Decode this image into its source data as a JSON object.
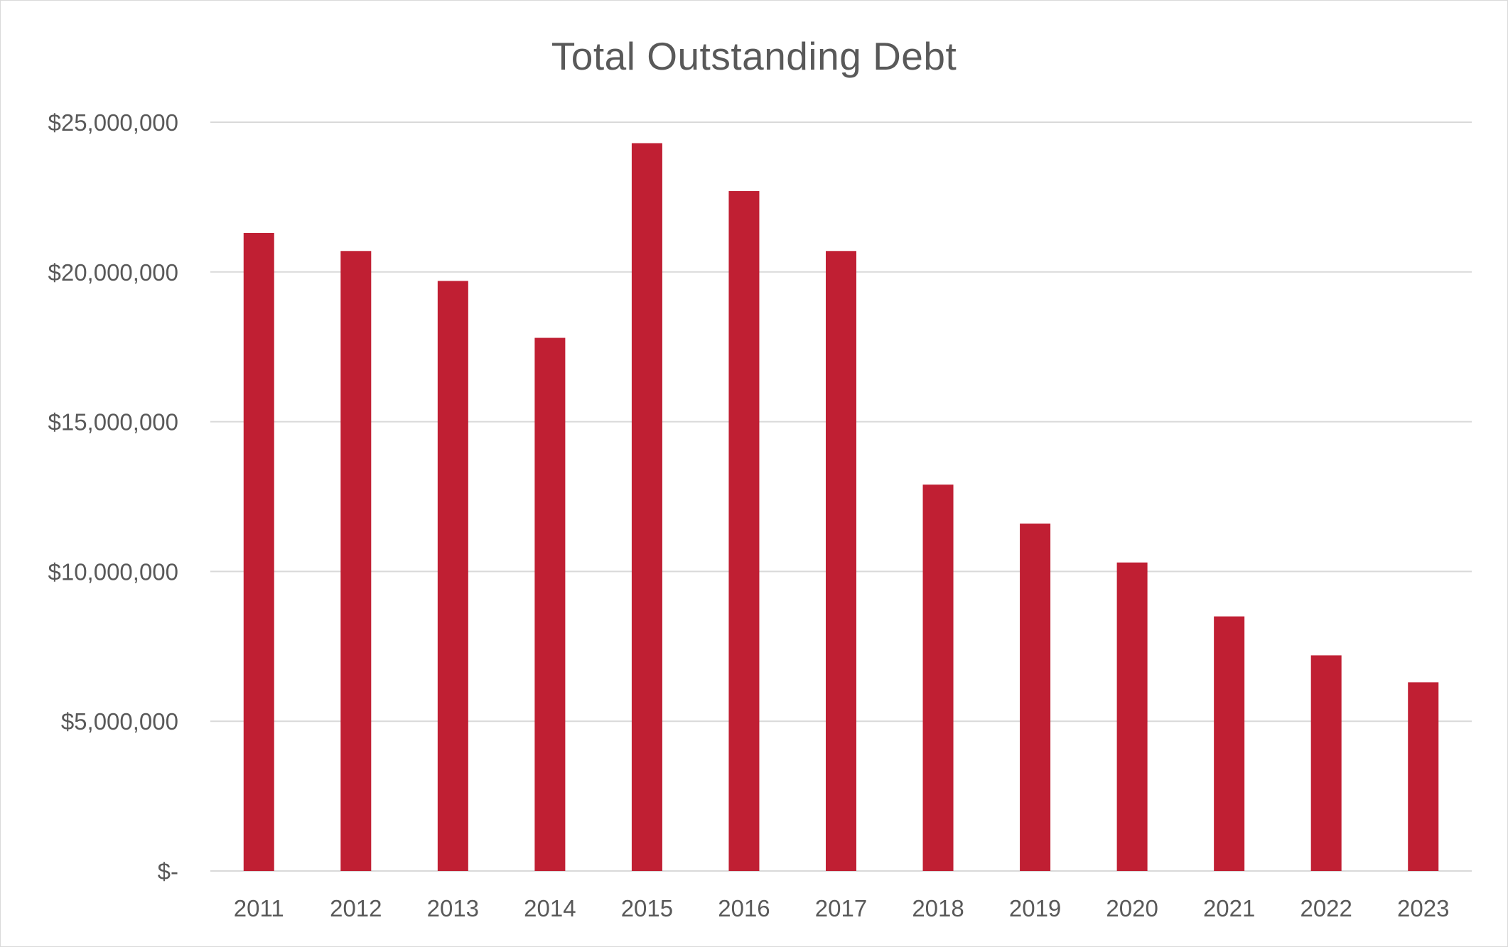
{
  "chart_data": {
    "type": "bar",
    "title": "Total Outstanding Debt",
    "xlabel": "",
    "ylabel": "",
    "categories": [
      "2011",
      "2012",
      "2013",
      "2014",
      "2015",
      "2016",
      "2017",
      "2018",
      "2019",
      "2020",
      "2021",
      "2022",
      "2023"
    ],
    "values": [
      21300000,
      20700000,
      19700000,
      17800000,
      24300000,
      22700000,
      20700000,
      12900000,
      11600000,
      10300000,
      8500000,
      7200000,
      6300000
    ],
    "ylim": [
      0,
      25000000
    ],
    "yticks": [
      0,
      5000000,
      10000000,
      15000000,
      20000000,
      25000000
    ],
    "ytick_labels": [
      "$-",
      "$5,000,000",
      "$10,000,000",
      "$15,000,000",
      "$20,000,000",
      "$25,000,000"
    ],
    "grid": true,
    "legend": "none",
    "colors": {
      "bar": "#C01F33",
      "grid": "#d9d9d9",
      "text": "#595959"
    }
  }
}
